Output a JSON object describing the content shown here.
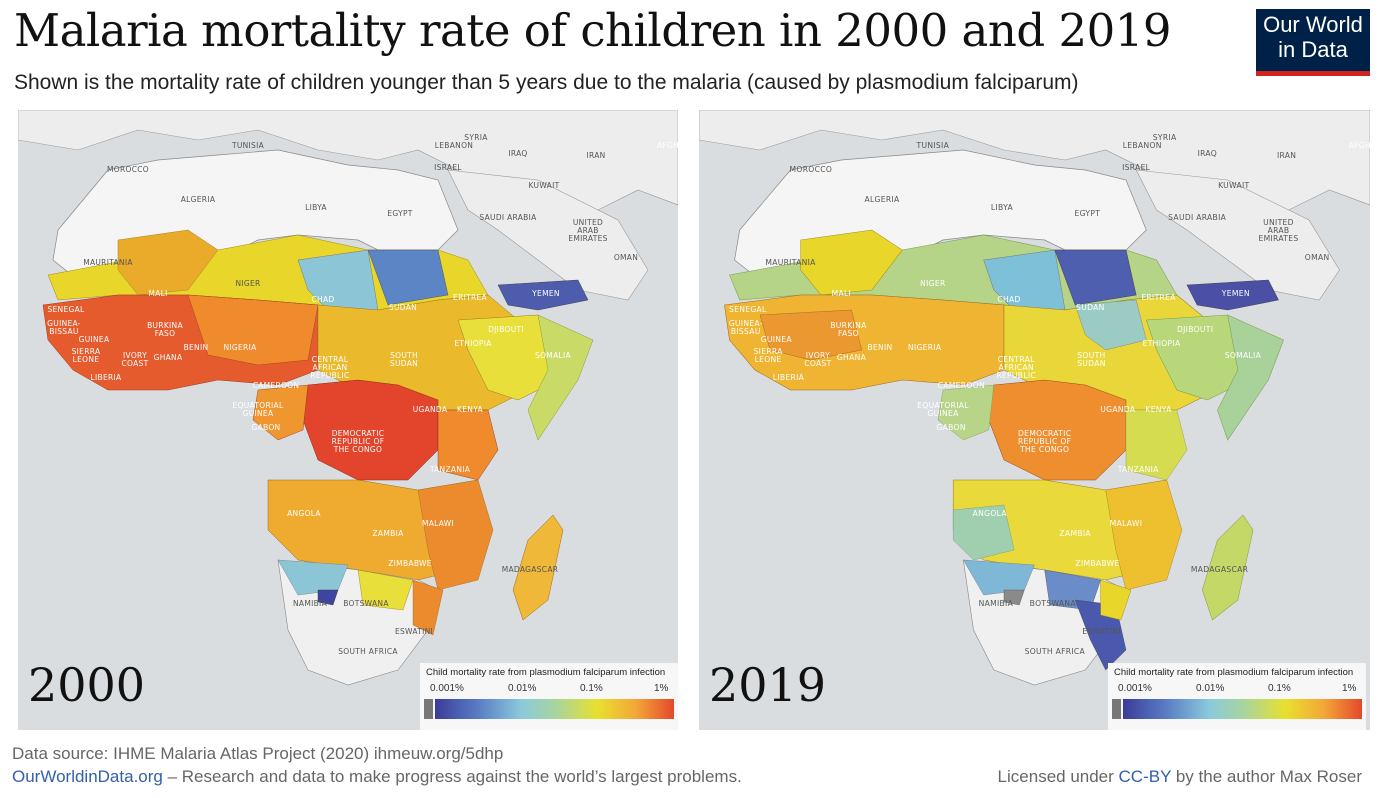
{
  "header": {
    "title": "Malaria mortality rate of children in 2000 and 2019",
    "subtitle": "Shown is the mortality rate of children younger than 5 years due to the malaria (caused by plasmodium falciparum)"
  },
  "logo": {
    "line1": "Our World",
    "line2": "in Data"
  },
  "panels": [
    {
      "year": "2000"
    },
    {
      "year": "2019"
    }
  ],
  "legend": {
    "title": "Child mortality rate from plasmodium falciparum infection",
    "ticks": [
      "0.001%",
      "0.01%",
      "0.1%",
      "1%"
    ],
    "scale_colors": [
      "#777777",
      "#3b3c9a",
      "#5a7cc4",
      "#8bc9dc",
      "#a6d4a0",
      "#e8e030",
      "#f2a838",
      "#e4482c"
    ]
  },
  "map_labels": {
    "tunisia": "TUNISIA",
    "morocco": "MOROCCO",
    "algeria": "ALGERIA",
    "libya": "LIBYA",
    "egypt": "EGYPT",
    "lebanon": "LEBANON",
    "israel": "ISRAEL",
    "syria": "SYRIA",
    "iraq": "IRAQ",
    "iran": "IRAN",
    "kuwait": "KUWAIT",
    "saudi_arabia": "SAUDI ARABIA",
    "uae1": "UNITED",
    "uae2": "ARAB",
    "uae3": "EMIRATES",
    "oman": "OMAN",
    "yemen": "YEMEN",
    "afghanistan": "AFGH",
    "mauritania": "MAURITANIA",
    "mali": "MALI",
    "niger": "NIGER",
    "chad": "CHAD",
    "sudan": "SUDAN",
    "eritrea": "ERITREA",
    "djibouti": "DJIBOUTI",
    "ethiopia": "ETHIOPIA",
    "somalia": "SOMALIA",
    "senegal": "SENEGAL",
    "guinea_bissau1": "GUINEA-",
    "guinea_bissau2": "BISSAU",
    "guinea": "GUINEA",
    "sierra_leone1": "SIERRA",
    "sierra_leone2": "LEONE",
    "liberia": "LIBERIA",
    "ivory_coast1": "IVORY",
    "ivory_coast2": "COAST",
    "ghana": "GHANA",
    "burkina1": "BURKINA",
    "burkina2": "FASO",
    "benin": "BENIN",
    "nigeria": "NIGERIA",
    "car1": "CENTRAL",
    "car2": "AFRICAN",
    "car3": "REPUBLIC",
    "south_sudan1": "SOUTH",
    "south_sudan2": "SUDAN",
    "cameroon": "CAMEROON",
    "eq_guinea1": "EQUATORIAL",
    "eq_guinea2": "GUINEA",
    "gabon": "GABON",
    "drc1": "DEMOCRATIC",
    "drc2": "REPUBLIC OF",
    "drc3": "THE CONGO",
    "uganda": "UGANDA",
    "kenya": "KENYA",
    "tanzania": "TANZANIA",
    "angola": "ANGOLA",
    "zambia": "ZAMBIA",
    "malawi": "MALAWI",
    "zimbabwe": "ZIMBABWE",
    "madagascar": "MADAGASCAR",
    "namibia": "NAMIBIA",
    "botswana": "BOTSWANA",
    "eswatini": "ESWATINI",
    "south_africa": "SOUTH AFRICA"
  },
  "footer": {
    "source": "Data source: IHME Malaria Atlas Project (2020) ihmeuw.org/5dhp",
    "owid_link": "OurWorldinData.org",
    "owid_tagline": " – Research and data to make progress against the world’s largest problems.",
    "license_prefix": "Licensed under ",
    "license_link": "CC-BY",
    "license_suffix": " by the author Max Roser"
  }
}
